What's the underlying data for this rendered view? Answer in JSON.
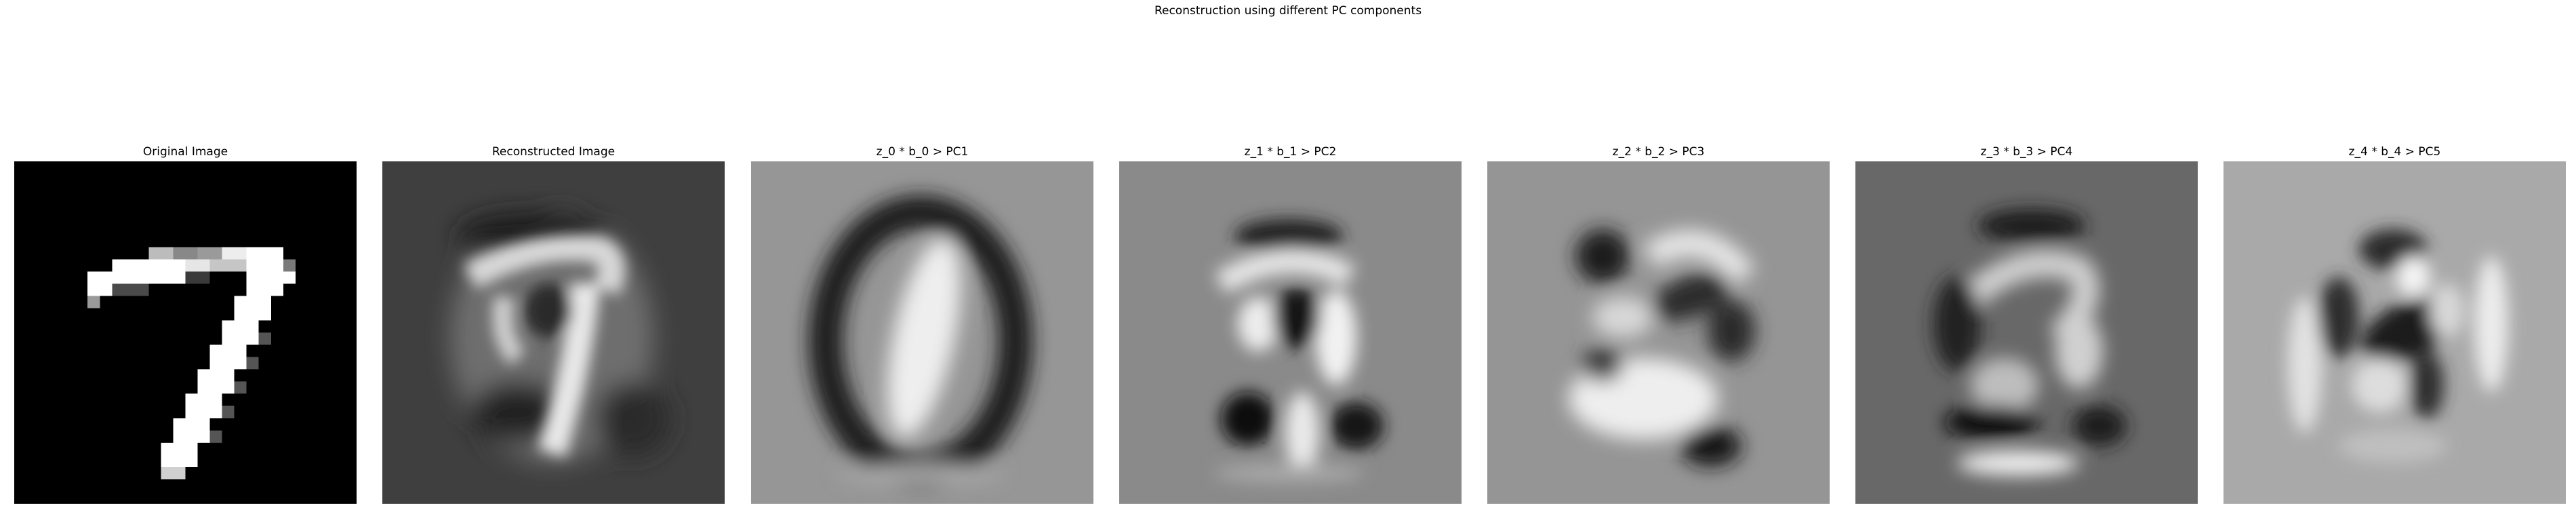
{
  "figure": {
    "title": "Reconstruction using different PC components",
    "colormap": "gray"
  },
  "panels": [
    {
      "title": "Original Image",
      "content": "digit 7 (MNIST, 28x28)"
    },
    {
      "title": "Reconstructed Image",
      "content": "blurred digit reconstruction"
    },
    {
      "title": "z_0 * b_0 > PC1",
      "content": "PC1 component"
    },
    {
      "title": "z_1 * b_1 > PC2",
      "content": "PC2 component"
    },
    {
      "title": "z_2 * b_2 > PC3",
      "content": "PC3 component"
    },
    {
      "title": "z_3 * b_3 > PC4",
      "content": "PC4 component"
    },
    {
      "title": "z_4 * b_4 > PC5",
      "content": "PC5 component"
    }
  ]
}
